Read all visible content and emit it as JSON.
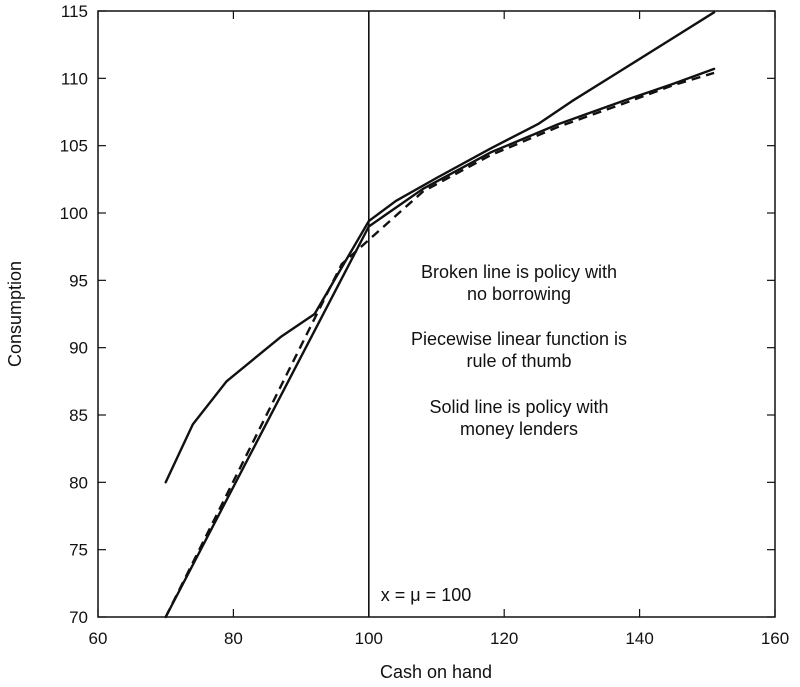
{
  "chart_data": {
    "type": "line",
    "xlabel": "Cash on hand",
    "ylabel": "Consumption",
    "xlim": [
      60,
      160
    ],
    "ylim": [
      70,
      115
    ],
    "xticks": [
      60,
      80,
      100,
      120,
      140,
      160
    ],
    "yticks": [
      70,
      75,
      80,
      85,
      90,
      95,
      100,
      105,
      110,
      115
    ],
    "grid": false,
    "legend": "none",
    "series": [
      {
        "style": "solid",
        "points": [
          [
            70,
            80.0
          ],
          [
            74,
            84.3
          ],
          [
            79,
            87.5
          ],
          [
            87,
            90.8
          ],
          [
            92,
            92.5
          ],
          [
            100,
            99.4
          ],
          [
            104,
            100.9
          ],
          [
            110,
            102.6
          ],
          [
            118,
            104.8
          ],
          [
            125,
            106.6
          ],
          [
            130,
            108.3
          ],
          [
            137,
            110.5
          ],
          [
            144,
            112.7
          ],
          [
            151,
            114.9
          ]
        ]
      },
      {
        "style": "solid",
        "points": [
          [
            70,
            70.0
          ],
          [
            100,
            99.0
          ],
          [
            108,
            101.8
          ],
          [
            118,
            104.5
          ],
          [
            128,
            106.6
          ],
          [
            138,
            108.4
          ],
          [
            145,
            109.6
          ],
          [
            151,
            110.7
          ]
        ]
      },
      {
        "style": "dashed",
        "points": [
          [
            70,
            70.0
          ],
          [
            96,
            96.2
          ],
          [
            100,
            98.0
          ],
          [
            108,
            101.6
          ],
          [
            118,
            104.3
          ],
          [
            128,
            106.4
          ],
          [
            138,
            108.2
          ],
          [
            145,
            109.5
          ],
          [
            151,
            110.4
          ]
        ]
      }
    ],
    "vertical_line": {
      "x": 100,
      "label": "x = μ = 100"
    },
    "annotations": [
      [
        "Broken line is policy with",
        "no borrowing"
      ],
      [
        "Piecewise linear function is",
        "rule of thumb"
      ],
      [
        "Solid line is policy with",
        "money lenders"
      ]
    ]
  }
}
